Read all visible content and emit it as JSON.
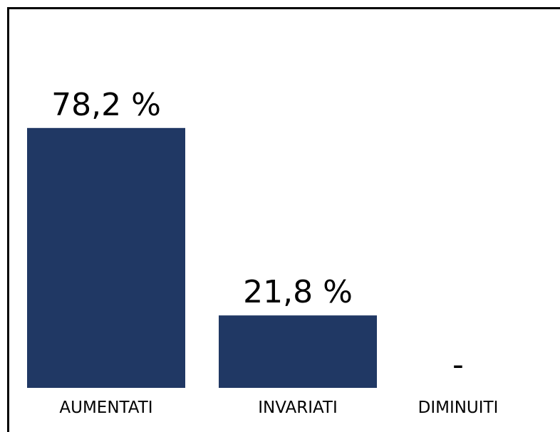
{
  "chart_data": {
    "type": "bar",
    "categories": [
      "AUMENTATI",
      "INVARIATI",
      "DIMINUITI"
    ],
    "values": [
      78.2,
      21.8,
      0
    ],
    "value_labels": [
      "78,2 %",
      "21,8 %",
      "-"
    ],
    "color": "#203864",
    "ylim": [
      0,
      100
    ]
  }
}
